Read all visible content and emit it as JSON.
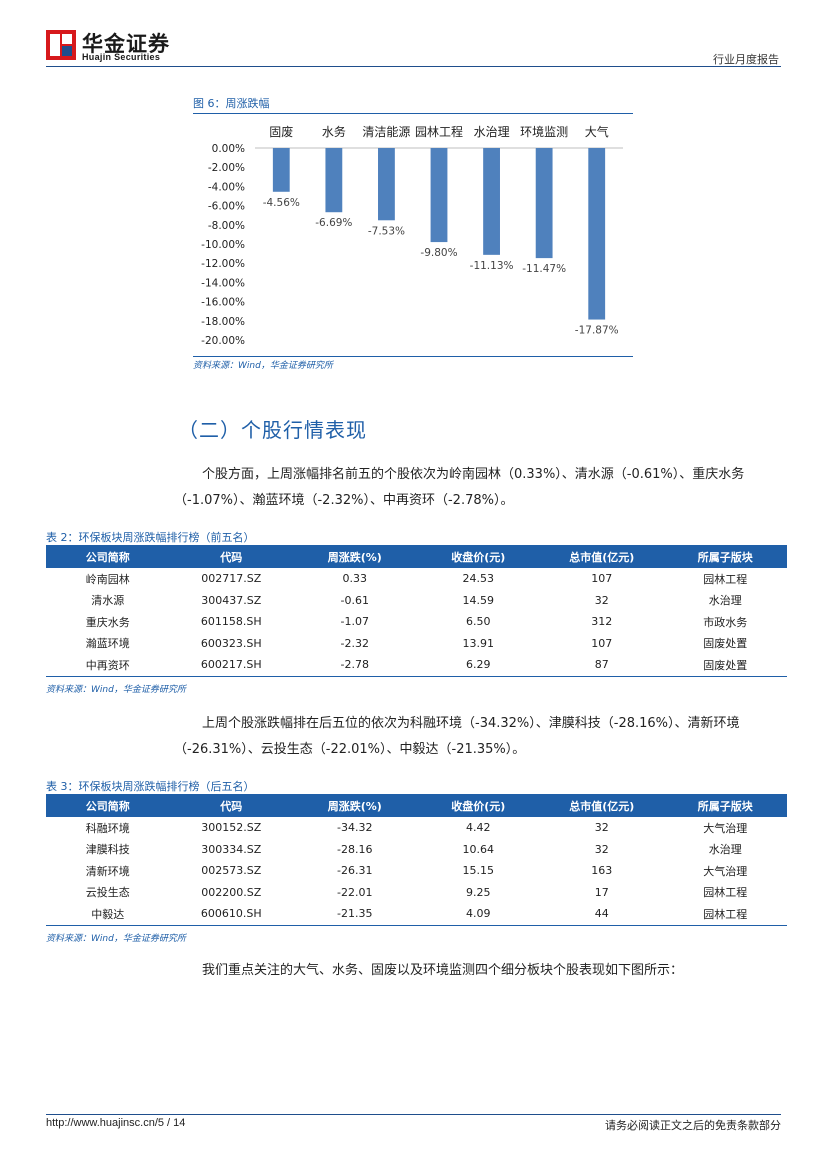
{
  "header": {
    "logo_cn": "华金证券",
    "logo_en": "Huajin Securities",
    "report_type": "行业月度报告",
    "brand_color": "#1f4e8c",
    "logo_red": "#d7191c"
  },
  "chart": {
    "caption": "图 6：周涨跌幅",
    "source": "资料来源：Wind，华金证券研究所"
  },
  "chart_data": {
    "type": "bar",
    "categories": [
      "固废",
      "水务",
      "清洁能源",
      "园林工程",
      "水治理",
      "环境监测",
      "大气"
    ],
    "values": [
      -4.56,
      -6.69,
      -7.53,
      -9.8,
      -11.13,
      -11.47,
      -17.87
    ],
    "data_labels": [
      "-4.56%",
      "-6.69%",
      "-7.53%",
      "-9.80%",
      "-11.13%",
      "-11.47%",
      "-17.87%"
    ],
    "y_ticks": [
      "0.00%",
      "-2.00%",
      "-4.00%",
      "-6.00%",
      "-8.00%",
      "-10.00%",
      "-12.00%",
      "-14.00%",
      "-16.00%",
      "-18.00%",
      "-20.00%"
    ],
    "ylim": [
      -20,
      0
    ],
    "bar_color": "#4f81bd",
    "grid": false
  },
  "section": {
    "heading": "（二）个股行情表现"
  },
  "paragraphs": {
    "p1": "个股方面，上周涨幅排名前五的个股依次为岭南园林（0.33%）、清水源（-0.61%）、重庆水务（-1.07%）、瀚蓝环境（-2.32%）、中再资环（-2.78%）。",
    "p2": "上周个股涨跌幅排在后五位的依次为科融环境（-34.32%）、津膜科技（-28.16%）、清新环境（-26.31%）、云投生态（-22.01%）、中毅达（-21.35%）。",
    "p3": "我们重点关注的大气、水务、固废以及环境监测四个细分板块个股表现如下图所示："
  },
  "table1": {
    "caption": "表 2：环保板块周涨跌幅排行榜（前五名）",
    "headers": [
      "公司简称",
      "代码",
      "周涨跌(%)",
      "收盘价(元)",
      "总市值(亿元)",
      "所属子版块"
    ],
    "rows": [
      [
        "岭南园林",
        "002717.SZ",
        "0.33",
        "24.53",
        "107",
        "园林工程"
      ],
      [
        "清水源",
        "300437.SZ",
        "-0.61",
        "14.59",
        "32",
        "水治理"
      ],
      [
        "重庆水务",
        "601158.SH",
        "-1.07",
        "6.50",
        "312",
        "市政水务"
      ],
      [
        "瀚蓝环境",
        "600323.SH",
        "-2.32",
        "13.91",
        "107",
        "固废处置"
      ],
      [
        "中再资环",
        "600217.SH",
        "-2.78",
        "6.29",
        "87",
        "固废处置"
      ]
    ],
    "source": "资料来源：Wind，华金证券研究所"
  },
  "table2": {
    "caption": "表 3：环保板块周涨跌幅排行榜（后五名）",
    "headers": [
      "公司简称",
      "代码",
      "周涨跌(%)",
      "收盘价(元)",
      "总市值(亿元)",
      "所属子版块"
    ],
    "rows": [
      [
        "科融环境",
        "300152.SZ",
        "-34.32",
        "4.42",
        "32",
        "大气治理"
      ],
      [
        "津膜科技",
        "300334.SZ",
        "-28.16",
        "10.64",
        "32",
        "水治理"
      ],
      [
        "清新环境",
        "002573.SZ",
        "-26.31",
        "15.15",
        "163",
        "大气治理"
      ],
      [
        "云投生态",
        "002200.SZ",
        "-22.01",
        "9.25",
        "17",
        "园林工程"
      ],
      [
        "中毅达",
        "600610.SH",
        "-21.35",
        "4.09",
        "44",
        "园林工程"
      ]
    ],
    "source": "资料来源：Wind，华金证券研究所"
  },
  "footer": {
    "url": "http://www.huajinsc.cn/5 / 14",
    "disclaimer": "请务必阅读正文之后的免责条款部分"
  }
}
